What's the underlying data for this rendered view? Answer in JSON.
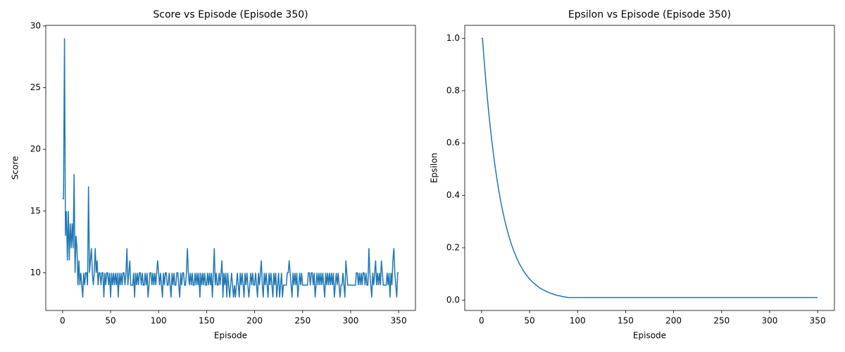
{
  "chart_data": [
    {
      "type": "line",
      "title": "Score vs Episode (Episode 350)",
      "xlabel": "Episode",
      "ylabel": "Score",
      "x": [
        0,
        1,
        2,
        3,
        4,
        5,
        6,
        7,
        8,
        9,
        10,
        11,
        12,
        13,
        14,
        15,
        16,
        17,
        18,
        19,
        20,
        21,
        22,
        23,
        24,
        25,
        26,
        27,
        28,
        29,
        30,
        31,
        32,
        33,
        34,
        35,
        36,
        37,
        38,
        39,
        40,
        41,
        42,
        43,
        44,
        45,
        46,
        47,
        48,
        49,
        50,
        51,
        52,
        53,
        54,
        55,
        56,
        57,
        58,
        59,
        60,
        61,
        62,
        63,
        64,
        65,
        66,
        67,
        68,
        69,
        70,
        71,
        72,
        73,
        74,
        75,
        76,
        77,
        78,
        79,
        80,
        81,
        82,
        83,
        84,
        85,
        86,
        87,
        88,
        89,
        90,
        91,
        92,
        93,
        94,
        95,
        96,
        97,
        98,
        99,
        100,
        101,
        102,
        103,
        104,
        105,
        106,
        107,
        108,
        109,
        110,
        111,
        112,
        113,
        114,
        115,
        116,
        117,
        118,
        119,
        120,
        121,
        122,
        123,
        124,
        125,
        126,
        127,
        128,
        129,
        130,
        131,
        132,
        133,
        134,
        135,
        136,
        137,
        138,
        139,
        140,
        141,
        142,
        143,
        144,
        145,
        146,
        147,
        148,
        149,
        150,
        151,
        152,
        153,
        154,
        155,
        156,
        157,
        158,
        159,
        160,
        161,
        162,
        163,
        164,
        165,
        166,
        167,
        168,
        169,
        170,
        171,
        172,
        173,
        174,
        175,
        176,
        177,
        178,
        179,
        180,
        181,
        182,
        183,
        184,
        185,
        186,
        187,
        188,
        189,
        190,
        191,
        192,
        193,
        194,
        195,
        196,
        197,
        198,
        199,
        200,
        201,
        202,
        203,
        204,
        205,
        206,
        207,
        208,
        209,
        210,
        211,
        212,
        213,
        214,
        215,
        216,
        217,
        218,
        219,
        220,
        221,
        222,
        223,
        224,
        225,
        226,
        227,
        228,
        229,
        230,
        231,
        232,
        233,
        234,
        235,
        236,
        237,
        238,
        239,
        240,
        241,
        242,
        243,
        244,
        245,
        246,
        247,
        248,
        249,
        250,
        251,
        252,
        253,
        254,
        255,
        256,
        257,
        258,
        259,
        260,
        261,
        262,
        263,
        264,
        265,
        266,
        267,
        268,
        269,
        270,
        271,
        272,
        273,
        274,
        275,
        276,
        277,
        278,
        279,
        280,
        281,
        282,
        283,
        284,
        285,
        286,
        287,
        288,
        289,
        290,
        291,
        292,
        293,
        294,
        295,
        296,
        297,
        298,
        299,
        300,
        301,
        302,
        303,
        304,
        305,
        306,
        307,
        308,
        309,
        310,
        311,
        312,
        313,
        314,
        315,
        316,
        317,
        318,
        319,
        320,
        321,
        322,
        323,
        324,
        325,
        326,
        327,
        328,
        329,
        330,
        331,
        332,
        333,
        334,
        335,
        336,
        337,
        338,
        339,
        340,
        341,
        342,
        343,
        344,
        345,
        346,
        347,
        348,
        349,
        350
      ],
      "series": [
        {
          "color": "#1f77b4",
          "values": [
            16,
            16,
            29,
            13,
            15,
            11,
            15,
            11,
            14,
            12,
            14,
            12,
            18,
            10,
            13,
            12,
            9,
            11,
            9,
            10,
            9,
            8,
            10,
            9,
            10,
            10,
            9,
            17,
            10,
            11,
            12,
            10,
            9,
            10,
            12,
            10,
            11,
            9,
            10,
            10,
            9,
            10,
            10,
            8,
            10,
            9,
            10,
            10,
            9,
            10,
            8,
            10,
            9,
            10,
            9,
            10,
            9,
            10,
            8,
            10,
            9,
            10,
            9,
            10,
            10,
            9,
            10,
            12,
            9,
            10,
            11,
            9,
            9,
            9,
            10,
            8,
            10,
            9,
            10,
            9,
            10,
            10,
            9,
            10,
            9,
            9,
            10,
            9,
            10,
            8,
            9,
            10,
            10,
            9,
            10,
            9,
            10,
            9,
            10,
            11,
            10,
            9,
            10,
            9,
            8,
            10,
            9,
            10,
            10,
            9,
            9,
            10,
            9,
            8,
            10,
            9,
            10,
            9,
            9,
            10,
            10,
            9,
            8,
            10,
            9,
            10,
            10,
            9,
            9,
            10,
            12,
            10,
            9,
            10,
            9,
            10,
            9,
            9,
            10,
            9,
            10,
            9,
            10,
            8,
            10,
            9,
            10,
            9,
            10,
            9,
            9,
            10,
            9,
            10,
            9,
            10,
            8,
            10,
            12,
            9,
            10,
            9,
            9,
            10,
            9,
            10,
            11,
            8,
            10,
            9,
            10,
            8,
            10,
            9,
            8,
            9,
            10,
            9,
            8,
            9,
            8,
            9,
            10,
            9,
            8,
            10,
            9,
            10,
            9,
            8,
            10,
            9,
            10,
            9,
            8,
            9,
            10,
            9,
            10,
            9,
            9,
            10,
            9,
            8,
            10,
            9,
            10,
            11,
            9,
            8,
            10,
            9,
            10,
            9,
            8,
            10,
            9,
            10,
            9,
            8,
            10,
            9,
            10,
            8,
            9,
            10,
            8,
            9,
            10,
            8,
            9,
            9,
            9,
            9,
            10,
            10,
            11,
            10,
            9,
            8,
            10,
            9,
            10,
            9,
            10,
            8,
            9,
            10,
            9,
            10,
            9,
            9,
            9,
            9,
            9,
            9,
            10,
            10,
            9,
            10,
            10,
            9,
            10,
            8,
            9,
            10,
            9,
            10,
            9,
            10,
            9,
            10,
            9,
            8,
            10,
            9,
            10,
            9,
            10,
            9,
            10,
            9,
            10,
            8,
            9,
            10,
            9,
            10,
            9,
            8,
            9,
            9,
            10,
            9,
            8,
            11,
            10,
            9,
            9,
            9,
            9,
            9,
            9,
            9,
            9,
            9,
            10,
            10,
            9,
            10,
            9,
            10,
            9,
            10,
            10,
            9,
            10,
            9,
            9,
            12,
            10,
            9,
            8,
            10,
            9,
            10,
            11,
            9,
            10,
            9,
            10,
            9,
            11,
            10,
            9,
            9,
            9,
            9,
            10,
            9,
            10,
            8,
            10,
            9,
            11,
            12,
            10,
            9,
            8,
            10,
            10
          ]
        }
      ],
      "xlim": [
        -17.5,
        367.5
      ],
      "xticks": [
        0,
        50,
        100,
        150,
        200,
        250,
        300,
        350
      ],
      "ylim": [
        6.95,
        30.05
      ],
      "yticks": [
        10,
        15,
        20,
        25,
        30
      ]
    },
    {
      "type": "line",
      "title": "Epsilon vs Episode (Episode 350)",
      "xlabel": "Episode",
      "ylabel": "Epsilon",
      "x": [
        0,
        1,
        2,
        3,
        4,
        5,
        6,
        7,
        8,
        9,
        10,
        11,
        12,
        13,
        14,
        15,
        16,
        17,
        18,
        19,
        20,
        21,
        22,
        23,
        24,
        25,
        26,
        27,
        28,
        29,
        30,
        31,
        32,
        33,
        34,
        35,
        36,
        37,
        38,
        39,
        40,
        41,
        42,
        43,
        44,
        45,
        46,
        47,
        48,
        49,
        50,
        51,
        52,
        53,
        54,
        55,
        56,
        57,
        58,
        59,
        60,
        61,
        62,
        63,
        64,
        65,
        66,
        67,
        68,
        69,
        70,
        71,
        72,
        73,
        74,
        75,
        76,
        77,
        78,
        79,
        80,
        81,
        82,
        83,
        84,
        85,
        86,
        87,
        88,
        89,
        90,
        350
      ],
      "series": [
        {
          "color": "#1f77b4",
          "values": [
            1,
            1,
            0.95,
            0.903,
            0.857,
            0.815,
            0.774,
            0.735,
            0.698,
            0.663,
            0.63,
            0.599,
            0.569,
            0.54,
            0.513,
            0.488,
            0.463,
            0.44,
            0.418,
            0.397,
            0.377,
            0.358,
            0.341,
            0.324,
            0.307,
            0.292,
            0.277,
            0.264,
            0.25,
            0.238,
            0.226,
            0.215,
            0.204,
            0.194,
            0.184,
            0.175,
            0.166,
            0.158,
            0.15,
            0.142,
            0.135,
            0.129,
            0.122,
            0.116,
            0.11,
            0.105,
            0.099,
            0.094,
            0.09,
            0.085,
            0.081,
            0.077,
            0.073,
            0.069,
            0.066,
            0.063,
            0.06,
            0.057,
            0.054,
            0.051,
            0.048,
            0.046,
            0.044,
            0.042,
            0.039,
            0.038,
            0.036,
            0.034,
            0.032,
            0.031,
            0.029,
            0.028,
            0.026,
            0.025,
            0.024,
            0.022,
            0.021,
            0.02,
            0.019,
            0.018,
            0.017,
            0.017,
            0.016,
            0.015,
            0.014,
            0.013,
            0.013,
            0.012,
            0.011,
            0.011,
            0.01,
            0.01
          ]
        }
      ],
      "xlim": [
        -17.5,
        367.5
      ],
      "xticks": [
        0,
        50,
        100,
        150,
        200,
        250,
        300,
        350
      ],
      "ylim": [
        -0.0395,
        1.0495
      ],
      "yticks": [
        {
          "value": 0,
          "label": "0.0"
        },
        0.2,
        0.4,
        0.6,
        0.8,
        {
          "value": 1,
          "label": "1.0"
        }
      ]
    }
  ]
}
